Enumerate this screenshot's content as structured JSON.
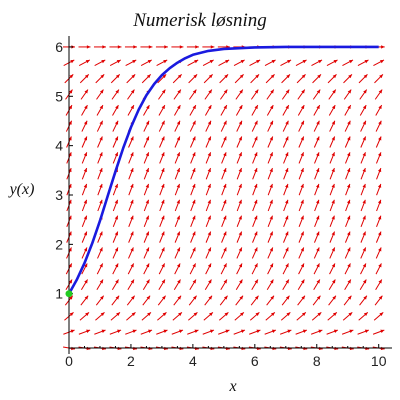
{
  "chart_data": {
    "type": "line",
    "title": "Numerisk løsning",
    "xlabel": "x",
    "ylabel": "y(x)",
    "xlim": [
      0,
      10.3
    ],
    "ylim": [
      -0.1,
      6.1
    ],
    "x_ticks": [
      0,
      2,
      4,
      6,
      8,
      10
    ],
    "y_ticks": [
      1,
      2,
      3,
      4,
      5,
      6
    ],
    "x_tick_labels": [
      "0",
      "2",
      "4",
      "6",
      "8",
      "10"
    ],
    "y_tick_labels": [
      "1",
      "2",
      "3",
      "4",
      "5",
      "6"
    ],
    "grid": false,
    "direction_field": {
      "equation": "y' = y(6 - y)/6 * 1.1",
      "color": "#e00000",
      "x_range": [
        0,
        10
      ],
      "y_range": [
        -0.1,
        6
      ],
      "nx": 21,
      "ny": 20
    },
    "series": [
      {
        "color": "#1a1adf",
        "x": [
          0,
          0.25,
          0.5,
          0.75,
          1.0,
          1.25,
          1.5,
          1.75,
          2.0,
          2.25,
          2.5,
          2.75,
          3.0,
          3.25,
          3.5,
          3.75,
          4.0,
          4.5,
          5.0,
          6.0,
          7.0,
          8.0,
          9.0,
          10.0
        ],
        "y": [
          1.0,
          1.28,
          1.62,
          2.02,
          2.48,
          2.98,
          3.48,
          3.95,
          4.37,
          4.73,
          5.02,
          5.25,
          5.43,
          5.57,
          5.68,
          5.77,
          5.84,
          5.92,
          5.96,
          5.99,
          6.0,
          6.0,
          6.0,
          6.0
        ]
      }
    ],
    "initial_point": {
      "x": 0,
      "y": 1,
      "color": "#22cc22"
    }
  }
}
